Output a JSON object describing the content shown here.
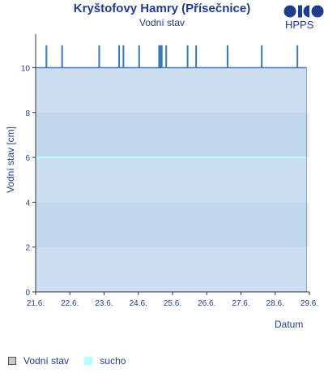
{
  "header": {
    "title": "Kryštofovy Hamry (Přísečnice)",
    "subtitle": "Vodní stav",
    "logo_text": "HPPS"
  },
  "legend": {
    "items": [
      {
        "label": "Vodní stav",
        "icon": "level-swatch"
      },
      {
        "label": "sucho",
        "icon": "drought-swatch"
      }
    ]
  },
  "colors": {
    "text": "#1f3d8a",
    "fill": "#c6dcf1",
    "line": "#3a78b6",
    "drought": "#b3ffff",
    "band": "#b9cde6",
    "background_band": "#f0f0f0"
  },
  "chart_data": {
    "type": "area",
    "title": "Kryštofovy Hamry (Přísečnice)",
    "subtitle": "Vodní stav",
    "xlabel": "Datum",
    "ylabel": "Vodní stav [cm]",
    "ylim": [
      0,
      11.5
    ],
    "xlim": [
      "2024-06-21",
      "2024-06-29"
    ],
    "x_tick_labels": [
      "21.6.",
      "22.6.",
      "23.6.",
      "24.6.",
      "25.6.",
      "26.6.",
      "27.6.",
      "28.6.",
      "29.6."
    ],
    "y_tick_labels": [
      "0",
      "2",
      "4",
      "6",
      "8",
      "10"
    ],
    "y_ticks": [
      0,
      2,
      4,
      6,
      8,
      10
    ],
    "grid": false,
    "baseline_value": 10,
    "data_end": "2024-06-28 22:00",
    "spikes": [
      {
        "start": "2024-06-21 07:00",
        "end": "2024-06-21 08:00",
        "value": 11
      },
      {
        "start": "2024-06-21 18:00",
        "end": "2024-06-21 19:00",
        "value": 11
      },
      {
        "start": "2024-06-22 20:00",
        "end": "2024-06-22 21:00",
        "value": 11
      },
      {
        "start": "2024-06-23 10:00",
        "end": "2024-06-23 11:00",
        "value": 11
      },
      {
        "start": "2024-06-23 13:00",
        "end": "2024-06-23 14:00",
        "value": 11
      },
      {
        "start": "2024-06-24 00:00",
        "end": "2024-06-24 01:00",
        "value": 11
      },
      {
        "start": "2024-06-24 14:00",
        "end": "2024-06-24 17:00",
        "value": 11
      },
      {
        "start": "2024-06-24 19:00",
        "end": "2024-06-24 20:00",
        "value": 11
      },
      {
        "start": "2024-06-25 10:00",
        "end": "2024-06-25 11:00",
        "value": 11
      },
      {
        "start": "2024-06-25 16:00",
        "end": "2024-06-25 17:00",
        "value": 11
      },
      {
        "start": "2024-06-26 14:00",
        "end": "2024-06-26 15:00",
        "value": 11
      },
      {
        "start": "2024-06-27 14:00",
        "end": "2024-06-27 15:00",
        "value": 11
      },
      {
        "start": "2024-06-28 15:00",
        "end": "2024-06-28 16:00",
        "value": 11
      }
    ],
    "drought_threshold": 6,
    "series": [
      {
        "name": "Vodní stav"
      },
      {
        "name": "sucho"
      }
    ]
  }
}
